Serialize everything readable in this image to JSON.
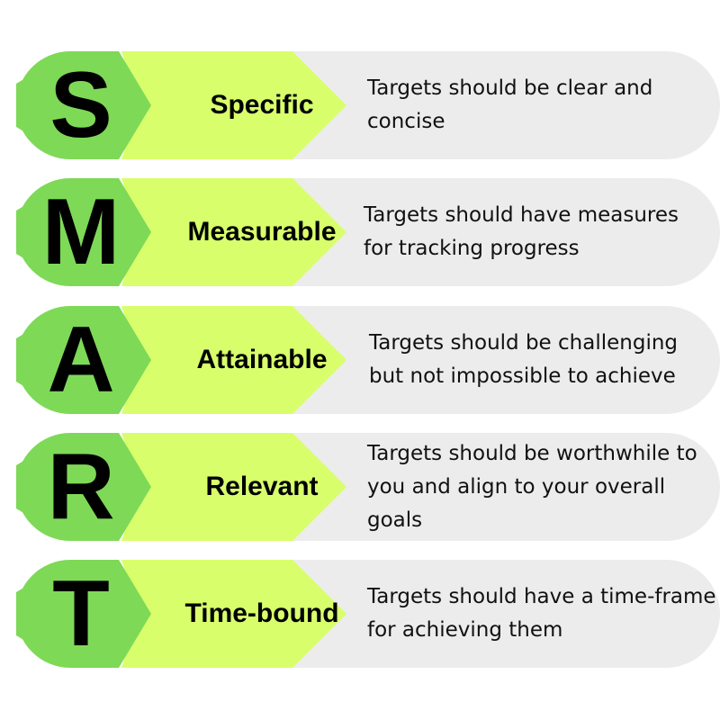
{
  "colors": {
    "letter_green": "#7ed957",
    "chevron_lime": "#d8ff6b",
    "description_gray": "#ececec",
    "text": "#000000"
  },
  "rows": [
    {
      "letter": "S",
      "term": "Specific",
      "description": "Targets should be clear and concise"
    },
    {
      "letter": "M",
      "term": "Measurable",
      "description": "Targets should have measures for tracking progress"
    },
    {
      "letter": "A",
      "term": "Attainable",
      "description": "Targets should be challenging but not impossible to achieve"
    },
    {
      "letter": "R",
      "term": "Relevant",
      "description": "Targets should be worthwhile to you and align to your overall goals"
    },
    {
      "letter": "T",
      "term": "Time-bound",
      "description": "Targets should have a time-frame for achieving them"
    }
  ]
}
